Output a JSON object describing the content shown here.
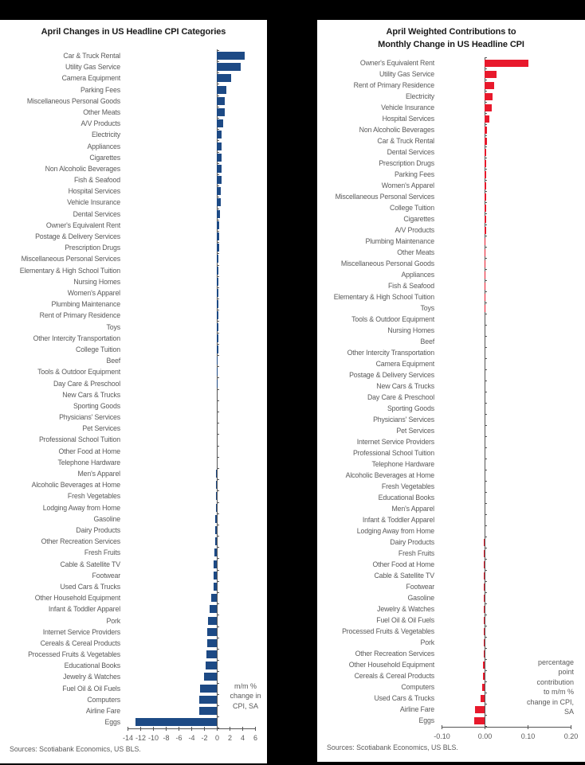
{
  "left_panel": {
    "title": "April Changes in US Headline CPI Categories",
    "annotation": [
      "m/m %",
      "change in",
      "CPI, SA"
    ],
    "source": "Sources: Scotiabank Economics, US BLS."
  },
  "right_panel": {
    "title_line1": "April Weighted Contributions to",
    "title_line2": "Monthly Change in US Headline CPI",
    "annotation": [
      "percentage",
      "point",
      "contribution",
      "to m/m %",
      "change in CPI,",
      "SA"
    ],
    "source": "Sources: Scotiabank Economics, US BLS."
  },
  "chart_data": [
    {
      "type": "bar",
      "orientation": "horizontal",
      "title": "April Changes in US Headline CPI Categories",
      "xlabel": "m/m % change in CPI, SA",
      "ylabel": "",
      "xlim": [
        -14,
        6
      ],
      "grid": false,
      "bar_color": "#1d4a85",
      "xticks": [
        {
          "value": -14,
          "label": "-14"
        },
        {
          "value": -12,
          "label": "-12"
        },
        {
          "value": -10,
          "label": "-10"
        },
        {
          "value": -8,
          "label": "-8"
        },
        {
          "value": -6,
          "label": "-6"
        },
        {
          "value": -4,
          "label": "-4"
        },
        {
          "value": -2,
          "label": "-2"
        },
        {
          "value": 0,
          "label": "0"
        },
        {
          "value": 2,
          "label": "2"
        },
        {
          "value": 4,
          "label": "4"
        },
        {
          "value": 6,
          "label": "6"
        }
      ],
      "categories": [
        "Car & Truck Rental",
        "Utility Gas Service",
        "Camera Equipment",
        "Parking Fees",
        "Miscellaneous Personal Goods",
        "Other Meats",
        "A/V Products",
        "Electricity",
        "Appliances",
        "Cigarettes",
        "Non Alcoholic Beverages",
        "Fish & Seafood",
        "Hospital Services",
        "Vehicle Insurance",
        "Dental Services",
        "Owner's Equivalent Rent",
        "Postage & Delivery Services",
        "Prescription Drugs",
        "Miscellaneous Personal Services",
        "Elementary & High School Tuition",
        "Nursing Homes",
        "Women's Apparel",
        "Plumbing Maintenance",
        "Rent of Primary Residence",
        "Toys",
        "Other Intercity Transportation",
        "College Tuition",
        "Beef",
        "Tools & Outdoor Equipment",
        "Day Care & Preschool",
        "New Cars & Trucks",
        "Sporting Goods",
        "Physicians' Services",
        "Pet Services",
        "Professional School Tuition",
        "Other Food at Home",
        "Telephone Hardware",
        "Men's Apparel",
        "Alcoholic Beverages at Home",
        "Fresh Vegetables",
        "Lodging Away from Home",
        "Gasoline",
        "Dairy Products",
        "Other Recreation Services",
        "Fresh Fruits",
        "Cable & Satellite TV",
        "Footwear",
        "Used Cars & Trucks",
        "Other Household Equipment",
        "Infant & Toddler Apparel",
        "Pork",
        "Internet Service Providers",
        "Cereals & Cereal Products",
        "Processed Fruits & Vegetables",
        "Educational Books",
        "Jewelry & Watches",
        "Fuel Oil & Oil Fuels",
        "Computers",
        "Airline Fare",
        "Eggs"
      ],
      "values": [
        4.4,
        3.7,
        2.2,
        1.5,
        1.2,
        1.2,
        1.0,
        0.8,
        0.8,
        0.7,
        0.7,
        0.7,
        0.6,
        0.6,
        0.5,
        0.4,
        0.4,
        0.4,
        0.3,
        0.3,
        0.3,
        0.3,
        0.3,
        0.3,
        0.3,
        0.2,
        0.2,
        0.1,
        0.1,
        0.1,
        0.0,
        0.0,
        0.0,
        0.0,
        0.0,
        0.0,
        0.0,
        -0.1,
        -0.1,
        -0.1,
        -0.1,
        -0.2,
        -0.2,
        -0.3,
        -0.4,
        -0.5,
        -0.5,
        -0.5,
        -0.9,
        -1.1,
        -1.4,
        -1.5,
        -1.5,
        -1.6,
        -1.7,
        -2.0,
        -2.6,
        -2.7,
        -2.8,
        -12.7
      ]
    },
    {
      "type": "bar",
      "orientation": "horizontal",
      "title": "April Weighted Contributions to Monthly Change in US Headline CPI",
      "xlabel": "percentage point contribution to m/m % change in CPI, SA",
      "ylabel": "",
      "xlim": [
        -0.1,
        0.2
      ],
      "grid": false,
      "bar_color": "#e8192c",
      "xticks": [
        {
          "value": -0.1,
          "label": "-0.10"
        },
        {
          "value": 0.0,
          "label": "0.00"
        },
        {
          "value": 0.1,
          "label": "0.10"
        },
        {
          "value": 0.2,
          "label": "0.20"
        }
      ],
      "categories": [
        "Owner's Equivalent Rent",
        "Utility Gas Service",
        "Rent of Primary Residence",
        "Electricity",
        "Vehicle Insurance",
        "Hospital Services",
        "Non Alcoholic Beverages",
        "Car & Truck Rental",
        "Dental Services",
        "Prescription Drugs",
        "Parking Fees",
        "Women's Apparel",
        "Miscellaneous Personal Services",
        "College Tuition",
        "Cigarettes",
        "A/V Products",
        "Plumbing Maintenance",
        "Other Meats",
        "Miscellaneous Personal Goods",
        "Appliances",
        "Fish & Seafood",
        "Elementary & High School Tuition",
        "Toys",
        "Tools & Outdoor Equipment",
        "Nursing Homes",
        "Beef",
        "Other Intercity Transportation",
        "Camera Equipment",
        "Postage & Delivery Services",
        "New Cars & Trucks",
        "Day Care & Preschool",
        "Sporting Goods",
        "Physicians' Services",
        "Pet Services",
        "Internet Service Providers",
        "Professional School Tuition",
        "Telephone Hardware",
        "Alcoholic Beverages at Home",
        "Fresh Vegetables",
        "Educational Books",
        "Men's Apparel",
        "Infant & Toddler Apparel",
        "Lodging Away from Home",
        "Dairy Products",
        "Fresh Fruits",
        "Other Food at Home",
        "Cable & Satellite TV",
        "Footwear",
        "Gasoline",
        "Jewelry & Watches",
        "Fuel Oil & Oil Fuels",
        "Processed Fruits & Vegetables",
        "Pork",
        "Other Recreation Services",
        "Other Household Equipment",
        "Cereals & Cereal Products",
        "Computers",
        "Used Cars & Trucks",
        "Airline Fare",
        "Eggs"
      ],
      "values": [
        0.102,
        0.028,
        0.022,
        0.018,
        0.016,
        0.011,
        0.006,
        0.005,
        0.004,
        0.004,
        0.003,
        0.003,
        0.003,
        0.003,
        0.003,
        0.003,
        0.002,
        0.002,
        0.002,
        0.002,
        0.002,
        0.001,
        0.001,
        0.0,
        0.0,
        0.0,
        0.0,
        0.0,
        0.0,
        0.0,
        0.0,
        0.0,
        0.0,
        0.0,
        0.0,
        0.0,
        0.0,
        0.0,
        0.0,
        0.0,
        0.0,
        0.0,
        0.0,
        -0.001,
        -0.001,
        -0.001,
        -0.002,
        -0.002,
        -0.002,
        -0.002,
        -0.002,
        -0.002,
        -0.002,
        -0.002,
        -0.003,
        -0.003,
        -0.006,
        -0.01,
        -0.023,
        -0.024
      ]
    }
  ]
}
